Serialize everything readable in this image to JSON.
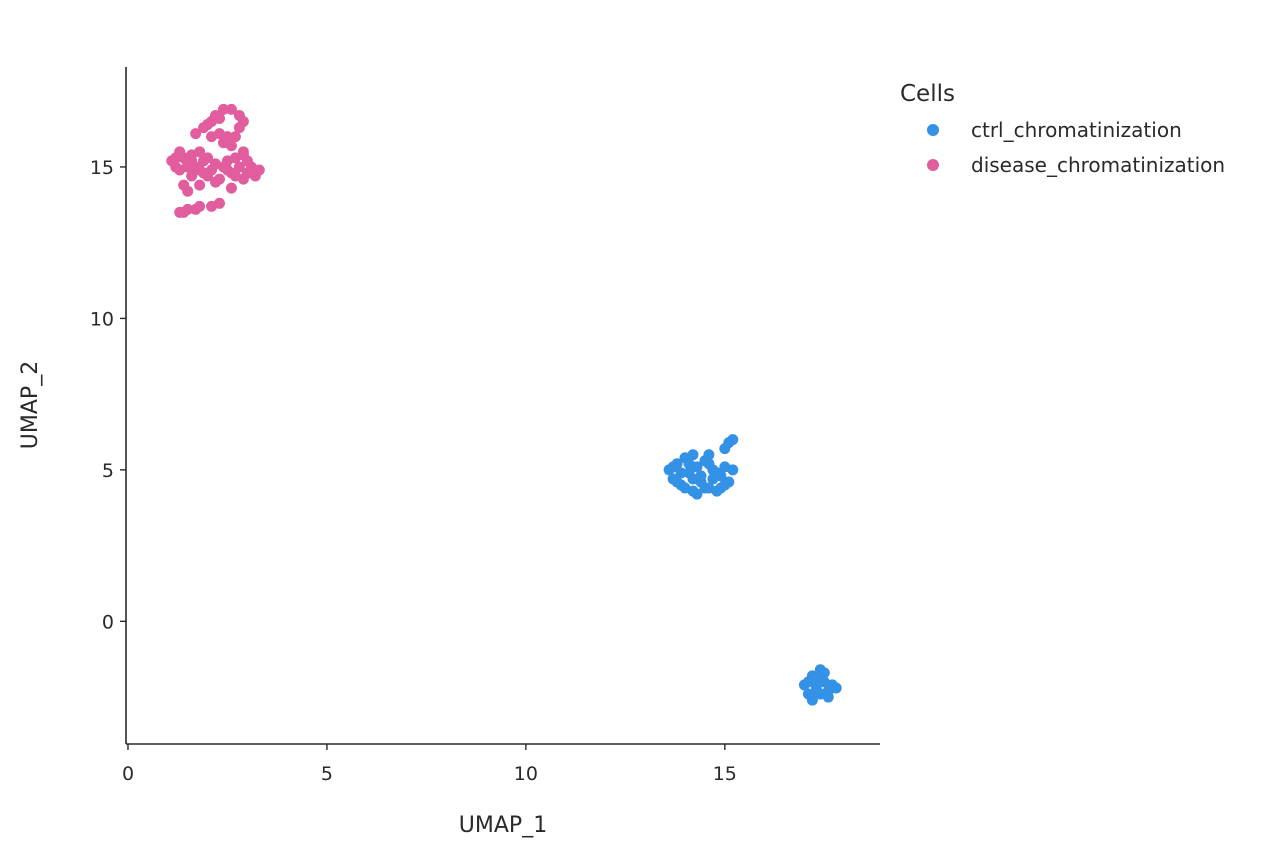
{
  "chart_data": {
    "type": "scatter",
    "xlabel": "UMAP_1",
    "ylabel": "UMAP_2",
    "xlim": [
      -0.05,
      18.9
    ],
    "ylim": [
      -4.05,
      18.3
    ],
    "xticks": [
      0,
      5,
      10,
      15
    ],
    "yticks": [
      0,
      5,
      10,
      15
    ],
    "grid": false,
    "legend": {
      "title": "Cells",
      "placement": "right"
    },
    "series": [
      {
        "name": "ctrl_chromatinization",
        "color": "#3391E6",
        "points": [
          [
            13.6,
            5.0
          ],
          [
            13.7,
            4.7
          ],
          [
            13.8,
            5.2
          ],
          [
            13.9,
            4.5
          ],
          [
            14.0,
            5.4
          ],
          [
            14.1,
            4.9
          ],
          [
            14.2,
            4.3
          ],
          [
            14.3,
            5.1
          ],
          [
            14.4,
            4.6
          ],
          [
            14.5,
            5.3
          ],
          [
            14.6,
            4.4
          ],
          [
            14.7,
            5.0
          ],
          [
            14.8,
            4.3
          ],
          [
            14.9,
            4.8
          ],
          [
            15.0,
            5.1
          ],
          [
            15.1,
            4.6
          ],
          [
            15.2,
            5.0
          ],
          [
            15.0,
            5.7
          ],
          [
            15.1,
            5.9
          ],
          [
            15.2,
            6.0
          ],
          [
            14.2,
            5.5
          ],
          [
            14.4,
            4.8
          ],
          [
            13.9,
            4.9
          ],
          [
            14.6,
            5.5
          ],
          [
            14.8,
            4.9
          ],
          [
            14.0,
            4.4
          ],
          [
            14.2,
            4.7
          ],
          [
            14.5,
            4.4
          ],
          [
            14.7,
            4.7
          ],
          [
            13.8,
            4.6
          ],
          [
            14.1,
            5.2
          ],
          [
            14.3,
            4.2
          ],
          [
            14.9,
            4.4
          ],
          [
            15.0,
            4.5
          ],
          [
            14.6,
            5.2
          ],
          [
            13.7,
            5.1
          ],
          [
            17.0,
            -2.1
          ],
          [
            17.1,
            -2.4
          ],
          [
            17.2,
            -1.8
          ],
          [
            17.3,
            -2.2
          ],
          [
            17.4,
            -1.6
          ],
          [
            17.5,
            -2.0
          ],
          [
            17.6,
            -2.3
          ],
          [
            17.7,
            -2.1
          ],
          [
            17.8,
            -2.2
          ],
          [
            17.2,
            -2.6
          ],
          [
            17.4,
            -2.4
          ],
          [
            17.3,
            -1.9
          ],
          [
            17.1,
            -2.0
          ],
          [
            17.5,
            -1.7
          ],
          [
            17.6,
            -2.5
          ],
          [
            17.3,
            -2.3
          ]
        ]
      },
      {
        "name": "disease_chromatinization",
        "color": "#E15D9E",
        "points": [
          [
            1.1,
            15.2
          ],
          [
            1.2,
            15.0
          ],
          [
            1.3,
            15.5
          ],
          [
            1.3,
            14.9
          ],
          [
            1.4,
            15.3
          ],
          [
            1.4,
            14.4
          ],
          [
            1.5,
            14.2
          ],
          [
            1.5,
            15.1
          ],
          [
            1.6,
            15.4
          ],
          [
            1.6,
            14.7
          ],
          [
            1.7,
            15.0
          ],
          [
            1.8,
            15.5
          ],
          [
            1.8,
            14.9
          ],
          [
            1.9,
            15.2
          ],
          [
            2.0,
            14.7
          ],
          [
            2.0,
            15.3
          ],
          [
            2.1,
            14.9
          ],
          [
            2.2,
            15.1
          ],
          [
            2.3,
            14.6
          ],
          [
            2.4,
            15.0
          ],
          [
            2.5,
            15.2
          ],
          [
            2.6,
            14.8
          ],
          [
            2.7,
            15.3
          ],
          [
            2.8,
            15.0
          ],
          [
            2.9,
            15.4
          ],
          [
            3.0,
            14.8
          ],
          [
            3.1,
            15.0
          ],
          [
            3.2,
            14.7
          ],
          [
            3.3,
            14.9
          ],
          [
            3.0,
            15.2
          ],
          [
            2.7,
            14.7
          ],
          [
            2.9,
            14.6
          ],
          [
            1.3,
            13.5
          ],
          [
            1.4,
            13.5
          ],
          [
            1.5,
            13.6
          ],
          [
            1.7,
            13.6
          ],
          [
            1.8,
            13.7
          ],
          [
            2.1,
            13.7
          ],
          [
            2.3,
            13.8
          ],
          [
            1.8,
            14.4
          ],
          [
            2.2,
            14.5
          ],
          [
            2.6,
            14.3
          ],
          [
            1.7,
            16.1
          ],
          [
            1.9,
            16.3
          ],
          [
            2.1,
            16.5
          ],
          [
            2.2,
            16.7
          ],
          [
            2.4,
            16.9
          ],
          [
            2.6,
            16.9
          ],
          [
            2.8,
            16.7
          ],
          [
            2.9,
            16.5
          ],
          [
            2.8,
            16.3
          ],
          [
            2.5,
            16.0
          ],
          [
            2.3,
            16.1
          ],
          [
            2.1,
            16.0
          ],
          [
            2.7,
            16.0
          ],
          [
            2.4,
            15.8
          ],
          [
            2.6,
            15.7
          ],
          [
            2.9,
            15.5
          ],
          [
            2.0,
            16.4
          ],
          [
            2.3,
            16.6
          ],
          [
            1.5,
            15.0
          ],
          [
            1.9,
            14.8
          ],
          [
            2.5,
            14.9
          ],
          [
            3.1,
            14.8
          ],
          [
            1.2,
            15.3
          ],
          [
            1.6,
            15.2
          ]
        ]
      }
    ]
  }
}
